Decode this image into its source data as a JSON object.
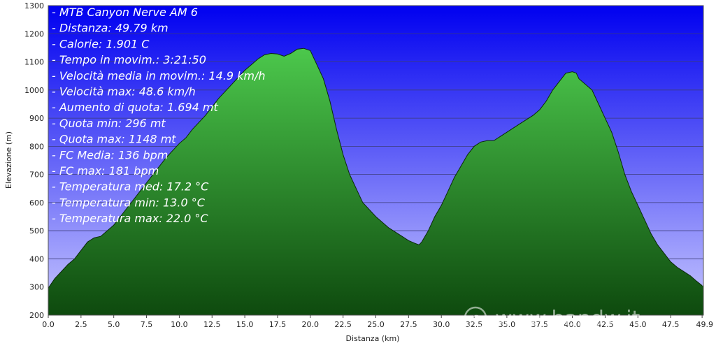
{
  "info_lines": [
    "- MTB Canyon Nerve AM 6",
    "- Distanza: 49.79 km",
    "- Calorie: 1.901 C",
    "- Tempo in movim.: 3:21:50",
    "- Velocità media in movim.: 14.9 km/h",
    "- Velocità max: 48.6 km/h",
    "- Aumento di quota: 1.694 mt",
    "- Quota min: 296 mt",
    "- Quota max: 1148 mt",
    "- FC Media: 136 bpm",
    "- FC max: 181 bpm",
    "- Temperatura med: 17.2 °C",
    "- Temperatura min: 13.0 °C",
    "- Temperatura max: 22.0 °C"
  ],
  "watermark": "www.bandw.it",
  "watermark_symbol": "c",
  "colors": {
    "bg_top": "#0000f0",
    "bg_bottom": "#c8c8ff",
    "fill_light": "#4cc84c",
    "fill_dark": "#0e4a0e",
    "outline": "#0b2a0b",
    "grid": "#3c3c7a"
  },
  "chart_data": {
    "type": "area",
    "xlabel": "Distanza  (km)",
    "ylabel": "Elevazione (m)",
    "xlim": [
      0,
      50
    ],
    "ylim": [
      200,
      1300
    ],
    "x_ticks": [
      0.0,
      2.5,
      5.0,
      7.5,
      10.0,
      12.5,
      15.0,
      17.5,
      20.0,
      22.5,
      25.0,
      27.5,
      30.0,
      32.5,
      35.0,
      37.5,
      40.0,
      42.5,
      45.0,
      47.5,
      49.9
    ],
    "x_tick_labels": [
      "0.0",
      "2.5",
      "5.0",
      "7.5",
      "10.0",
      "12.5",
      "15.0",
      "17.5",
      "20.0",
      "22.5",
      "25.0",
      "27.5",
      "30.0",
      "32.5",
      "35.0",
      "37.5",
      "40.0",
      "42.5",
      "45.0",
      "47.5",
      "49.9"
    ],
    "y_ticks": [
      200,
      300,
      400,
      500,
      600,
      700,
      800,
      900,
      1000,
      1100,
      1200,
      1300
    ],
    "grid": true,
    "x": [
      0,
      0.5,
      1,
      1.5,
      2,
      2.5,
      3,
      3.5,
      4,
      4.5,
      5,
      5.5,
      6,
      7,
      8,
      9,
      10,
      10.5,
      11,
      12,
      13,
      14,
      15,
      15.5,
      16,
      16.5,
      17,
      17.5,
      18,
      18.5,
      19,
      19.5,
      20,
      20.5,
      21,
      21.5,
      22,
      22.5,
      23,
      23.5,
      24,
      25,
      26,
      27,
      27.5,
      28,
      28.3,
      28.5,
      29,
      29.5,
      30,
      30.5,
      31,
      31.5,
      32,
      32.5,
      33,
      33.5,
      34,
      35,
      36,
      37,
      37.5,
      38,
      38.5,
      39,
      39.5,
      40,
      40.3,
      40.5,
      41,
      41.5,
      42,
      42.5,
      43,
      43.5,
      44,
      44.5,
      45,
      45.5,
      46,
      46.5,
      47,
      47.5,
      48,
      48.5,
      49,
      49.5,
      49.9
    ],
    "values": [
      296,
      330,
      355,
      380,
      400,
      430,
      460,
      475,
      480,
      500,
      520,
      550,
      580,
      640,
      700,
      760,
      810,
      830,
      860,
      910,
      970,
      1020,
      1070,
      1090,
      1110,
      1125,
      1130,
      1128,
      1120,
      1130,
      1145,
      1148,
      1140,
      1090,
      1040,
      960,
      860,
      770,
      700,
      650,
      600,
      550,
      510,
      480,
      465,
      455,
      450,
      460,
      500,
      550,
      590,
      640,
      690,
      730,
      770,
      800,
      815,
      820,
      820,
      850,
      880,
      910,
      930,
      960,
      1000,
      1030,
      1060,
      1065,
      1060,
      1040,
      1020,
      1000,
      950,
      900,
      850,
      780,
      700,
      640,
      590,
      540,
      490,
      450,
      420,
      390,
      370,
      355,
      340,
      320,
      305
    ]
  }
}
